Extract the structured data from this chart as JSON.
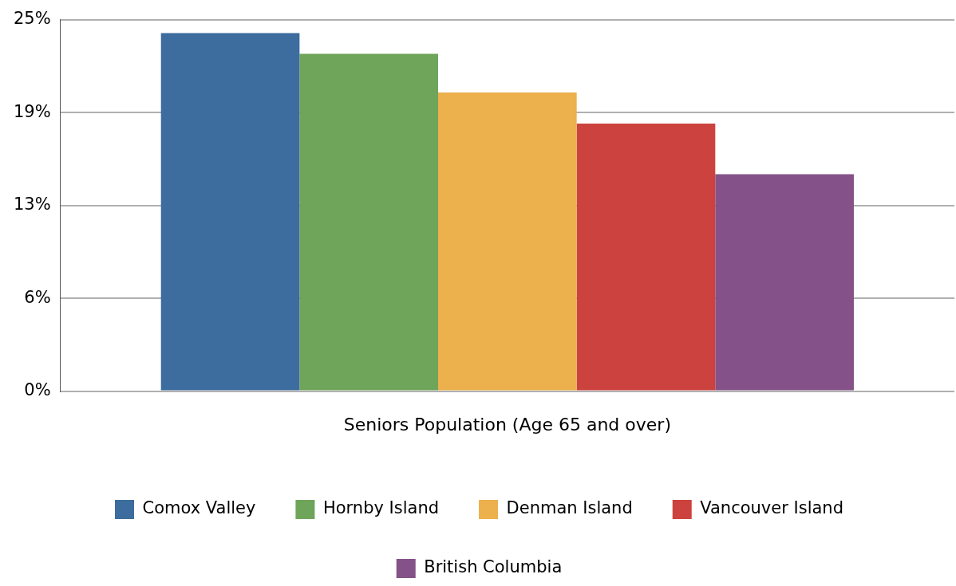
{
  "chart_data": {
    "type": "bar",
    "categories": [
      "Seniors Population (Age 65 and over)"
    ],
    "series": [
      {
        "name": "Comox Valley",
        "color": "#3d6c9e",
        "values": [
          24.1
        ]
      },
      {
        "name": "Hornby Island",
        "color": "#6fa55a",
        "values": [
          22.7
        ]
      },
      {
        "name": "Denman Island",
        "color": "#ecb04c",
        "values": [
          20.1
        ]
      },
      {
        "name": "Vancouver Island",
        "color": "#cc423e",
        "values": [
          18.0
        ]
      },
      {
        "name": "British Columbia",
        "color": "#845289",
        "values": [
          14.6
        ]
      }
    ],
    "ylim": [
      0,
      25
    ],
    "yticks": [
      {
        "value": 0,
        "label": "0%"
      },
      {
        "value": 6.25,
        "label": "6%"
      },
      {
        "value": 12.5,
        "label": "13%"
      },
      {
        "value": 18.75,
        "label": "19%"
      },
      {
        "value": 25,
        "label": "25%"
      }
    ],
    "grid": "y",
    "legend": "bottom"
  }
}
